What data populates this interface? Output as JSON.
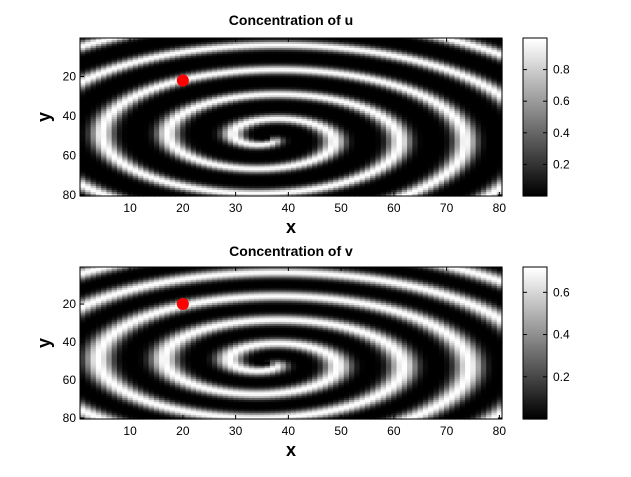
{
  "figure": {
    "background": "#ffffff",
    "marker_color": "#ff0000",
    "colormap": "gray"
  },
  "chart_data": [
    {
      "type": "heatmap",
      "title": "Concentration of u",
      "xlabel": "x",
      "ylabel": "y",
      "xlim": [
        1,
        80
      ],
      "ylim": [
        1,
        80
      ],
      "y_reversed": true,
      "xticks": [
        10,
        20,
        30,
        40,
        50,
        60,
        70,
        80
      ],
      "yticks": [
        20,
        40,
        60,
        80
      ],
      "color_range": [
        0,
        1
      ],
      "colorbar_ticks": [
        0.2,
        0.4,
        0.6,
        0.8
      ],
      "spiral_center": [
        36,
        51
      ],
      "marker": {
        "x": 20,
        "y": 22
      }
    },
    {
      "type": "heatmap",
      "title": "Concentration of v",
      "xlabel": "x",
      "ylabel": "y",
      "xlim": [
        1,
        80
      ],
      "ylim": [
        1,
        80
      ],
      "y_reversed": true,
      "xticks": [
        10,
        20,
        30,
        40,
        50,
        60,
        70,
        80
      ],
      "yticks": [
        20,
        40,
        60,
        80
      ],
      "color_range": [
        0,
        0.72
      ],
      "colorbar_ticks": [
        0.2,
        0.4,
        0.6
      ],
      "spiral_center": [
        36,
        51
      ],
      "marker": {
        "x": 20,
        "y": 20
      }
    }
  ]
}
